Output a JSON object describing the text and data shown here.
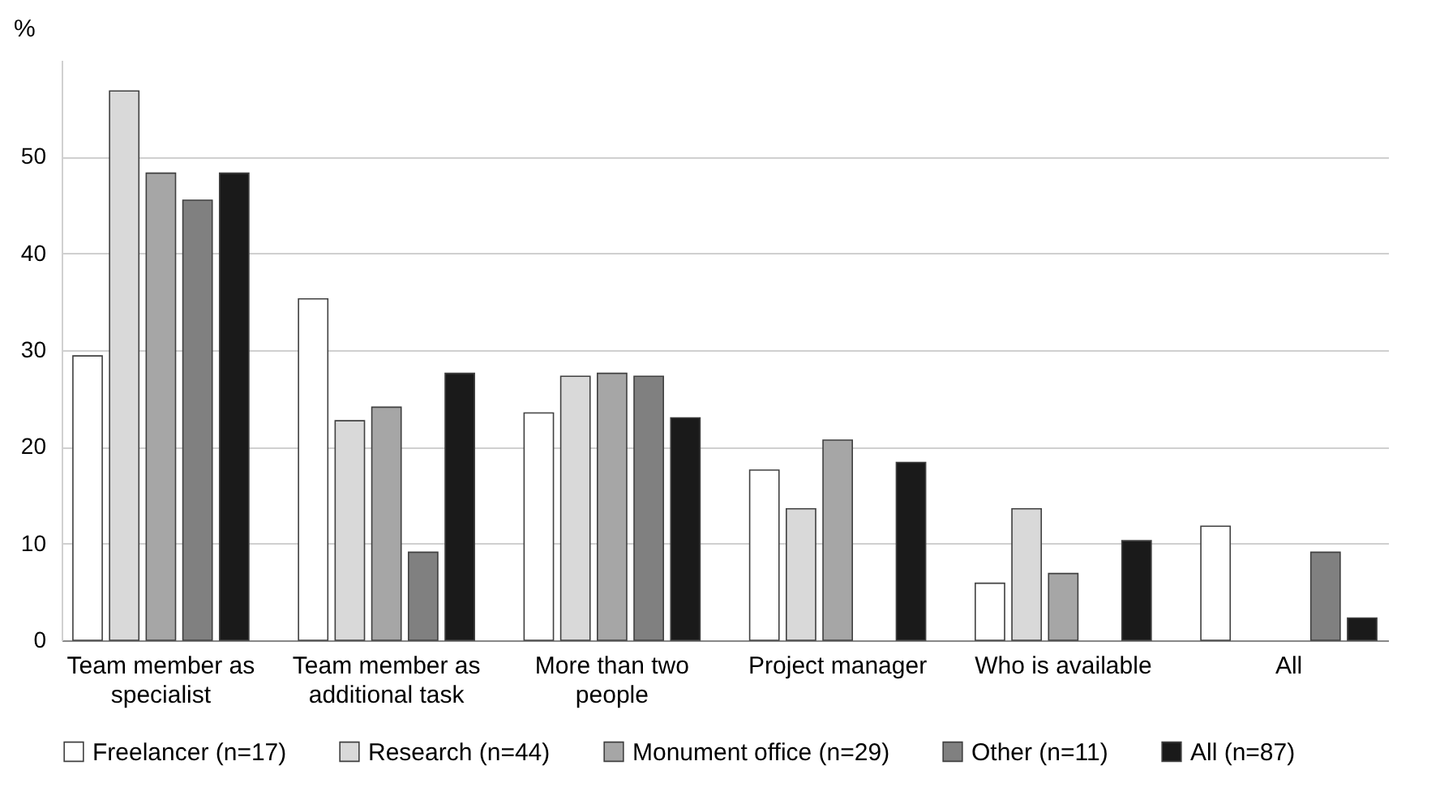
{
  "chart_data": {
    "type": "bar",
    "ylabel": "%",
    "categories": [
      "Team member as specialist",
      "Team member as additional task",
      "More than two people",
      "Project manager",
      "Who is available",
      "All"
    ],
    "series": [
      {
        "name": "Freelancer (n=17)",
        "color": "#ffffff",
        "values": [
          29.4,
          35.3,
          23.5,
          17.6,
          5.9,
          11.8
        ]
      },
      {
        "name": "Research (n=44)",
        "color": "#d9d9d9",
        "values": [
          56.8,
          22.7,
          27.3,
          13.6,
          13.6,
          0
        ]
      },
      {
        "name": "Monument office (n=29)",
        "color": "#a6a6a6",
        "values": [
          48.3,
          24.1,
          27.6,
          20.7,
          6.9,
          0
        ]
      },
      {
        "name": "Other (n=11)",
        "color": "#808080",
        "values": [
          45.5,
          9.1,
          27.3,
          0,
          0,
          9.1
        ]
      },
      {
        "name": "All (n=87)",
        "color": "#1a1a1a",
        "values": [
          48.3,
          27.6,
          23.0,
          18.4,
          10.3,
          2.3
        ]
      }
    ],
    "ylim": [
      0,
      60
    ],
    "yticks": [
      0,
      10,
      20,
      30,
      40,
      50
    ],
    "grid": "y",
    "legend": "bottom"
  }
}
